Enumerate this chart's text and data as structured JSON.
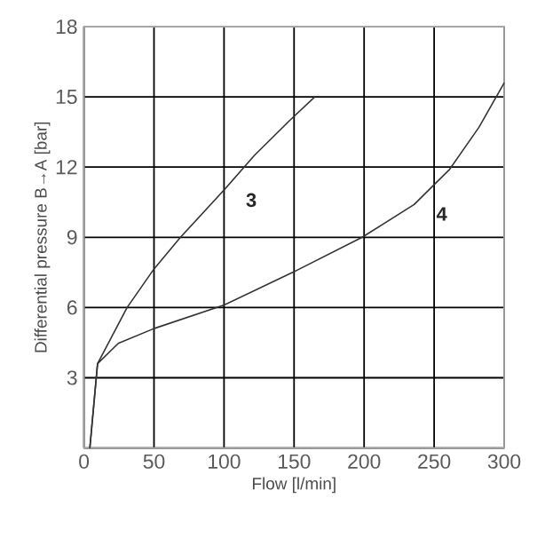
{
  "chart_data": {
    "type": "line",
    "xlabel": "Flow [l/min]",
    "ylabel": "Differential pressure B→A [bar]",
    "xlim": [
      0,
      300
    ],
    "ylim": [
      0,
      18
    ],
    "xticks": [
      0,
      50,
      100,
      150,
      200,
      250,
      300
    ],
    "yticks": [
      {
        "value": 0,
        "label": null
      },
      3,
      6,
      9,
      12,
      15,
      18
    ],
    "grid": true,
    "marker": "none",
    "line_style": "solid",
    "series": [
      {
        "color": "#333333",
        "x": [
          4.2,
          9.7,
          30.8,
          49.9,
          68.9,
          99.7,
          121.7,
          147,
          164.8
        ],
        "values": [
          0,
          3.6,
          6.0,
          7.64,
          9.0,
          11.0,
          12.5,
          14.0,
          15.0
        ]
      },
      {
        "color": "#333333",
        "x": [
          4.2,
          9.7,
          24.5,
          49.9,
          99.7,
          149,
          198.6,
          235.7,
          261,
          282,
          300
        ],
        "values": [
          0,
          3.6,
          4.47,
          5.1,
          6.1,
          7.5,
          9.0,
          10.4,
          11.9,
          13.7,
          15.6
        ]
      }
    ],
    "annotations": [
      "3",
      "4"
    ]
  }
}
